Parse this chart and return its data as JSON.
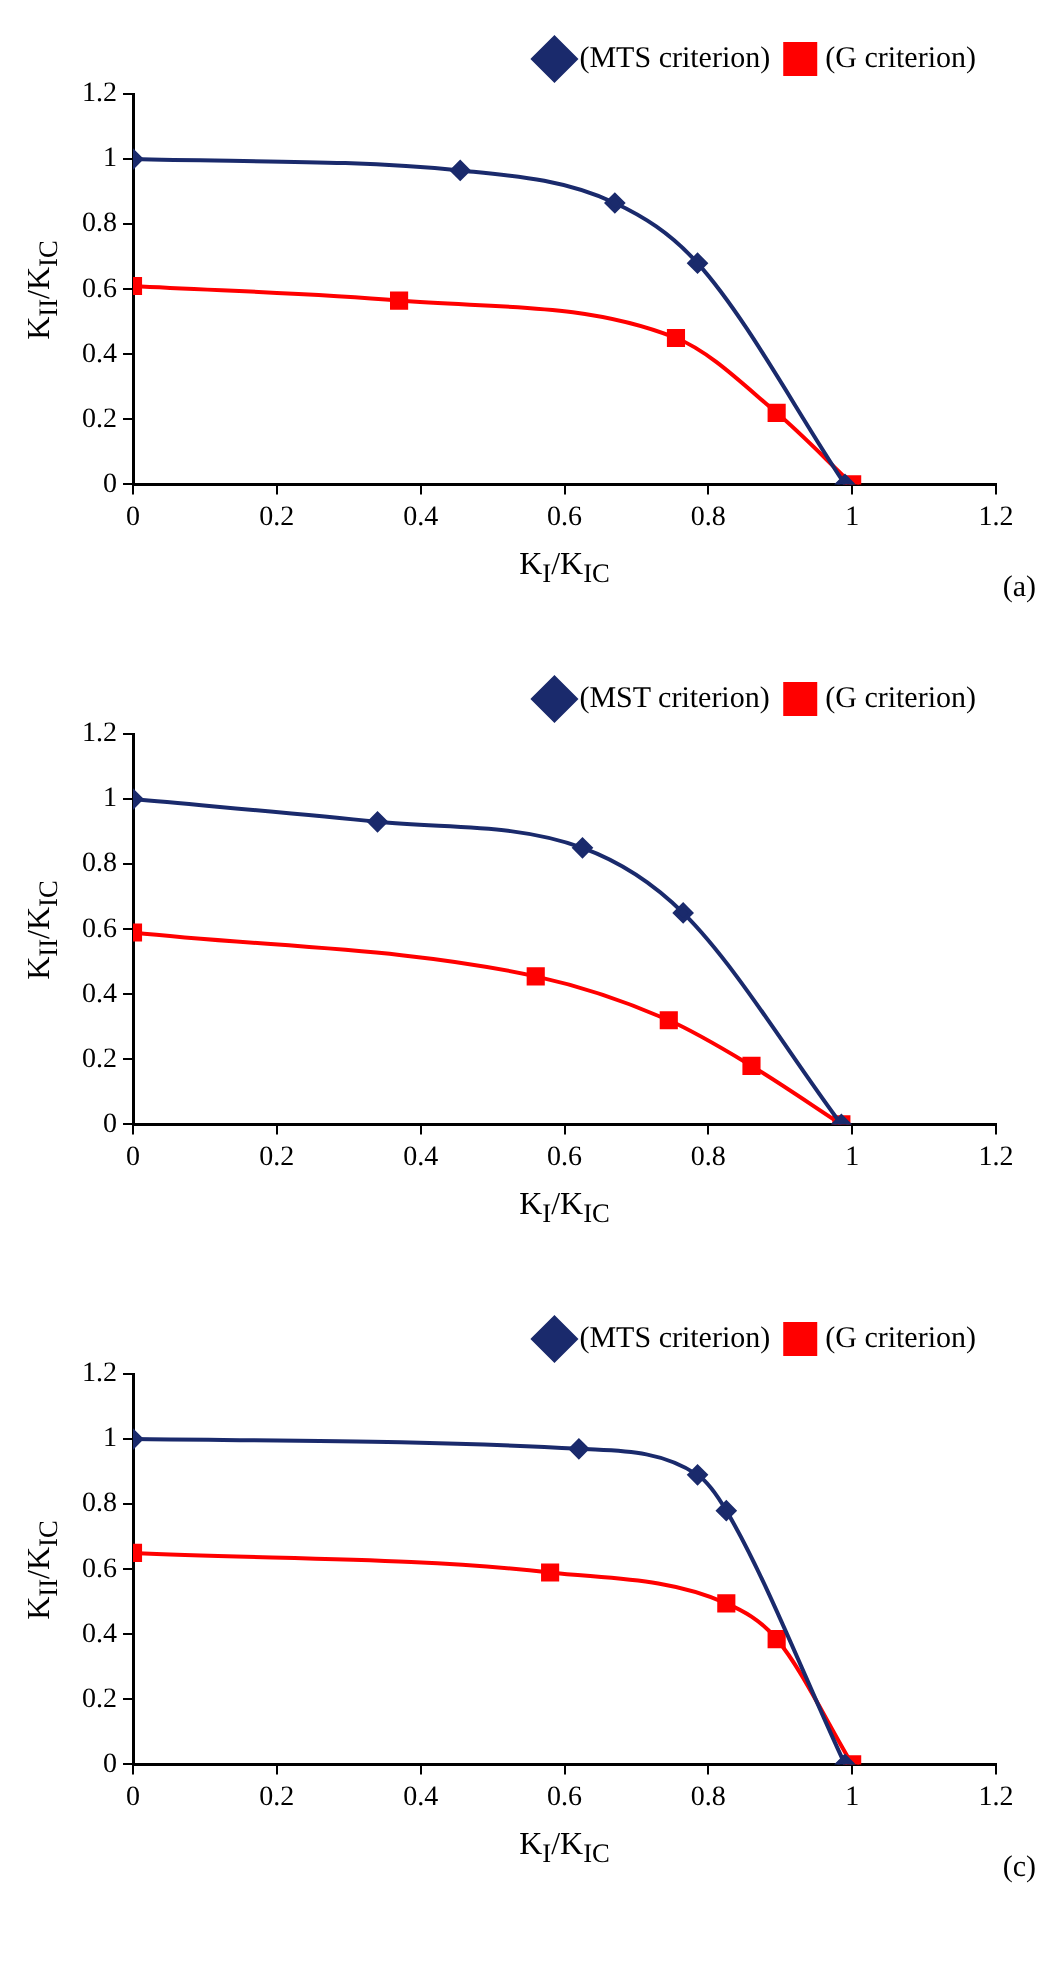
{
  "chart_data": [
    {
      "type": "line",
      "xlabel": "K$_{I}$/K$_{IC}$",
      "ylabel": "K$_{II}$/K$_{IC}$",
      "annotations": [
        "(a)"
      ],
      "xlim": [
        0,
        1.2
      ],
      "xticks": [
        0,
        0.2,
        0.4,
        0.6,
        0.8,
        1,
        1.2
      ],
      "ylim": [
        0,
        1.2
      ],
      "yticks": [
        0,
        0.2,
        0.4,
        0.6,
        0.8,
        1,
        1.2
      ],
      "grid": false,
      "legend": "top right",
      "series": [
        {
          "name": "(MTS criterion)",
          "color": "#1a2a6c",
          "marker": "diamond",
          "x": [
            0,
            0.455,
            0.67,
            0.785,
            0.99
          ],
          "values": [
            1,
            0.965,
            0.865,
            0.68,
            0
          ]
        },
        {
          "name": "(G criterion)",
          "color": "#ff0000",
          "marker": "square",
          "x": [
            0,
            0.37,
            0.755,
            0.895,
            1
          ],
          "values": [
            0.61,
            0.565,
            0.45,
            0.22,
            0
          ]
        }
      ]
    },
    {
      "type": "line",
      "xlabel": "K$_{I}$/K$_{IC}$",
      "ylabel": "K$_{II}$/K$_{IC}$",
      "xlim": [
        0,
        1.2
      ],
      "xticks": [
        0,
        0.2,
        0.4,
        0.6,
        0.8,
        1,
        1.2
      ],
      "ylim": [
        0,
        1.2
      ],
      "yticks": [
        0,
        0.2,
        0.4,
        0.6,
        0.8,
        1,
        1.2
      ],
      "grid": false,
      "legend": "top right",
      "series": [
        {
          "name": "(MST criterion)",
          "color": "#1a2a6c",
          "marker": "diamond",
          "x": [
            0,
            0.34,
            0.625,
            0.765,
            0.985
          ],
          "values": [
            1,
            0.93,
            0.85,
            0.65,
            0
          ]
        },
        {
          "name": "(G criterion)",
          "color": "#ff0000",
          "marker": "square",
          "x": [
            0,
            0.56,
            0.745,
            0.86,
            0.985
          ],
          "values": [
            0.59,
            0.455,
            0.32,
            0.18,
            0
          ]
        }
      ]
    },
    {
      "type": "line",
      "xlabel": "K$_{I}$/K$_{IC}$",
      "ylabel": "K$_{II}$/K$_{IC}$",
      "annotations": [
        "(c)"
      ],
      "xlim": [
        0,
        1.2
      ],
      "xticks": [
        0,
        0.2,
        0.4,
        0.6,
        0.8,
        1,
        1.2
      ],
      "ylim": [
        0,
        1.2
      ],
      "yticks": [
        0,
        0.2,
        0.4,
        0.6,
        0.8,
        1,
        1.2
      ],
      "grid": false,
      "legend": "top right",
      "series": [
        {
          "name": "(MTS criterion)",
          "color": "#1a2a6c",
          "marker": "diamond",
          "x": [
            0,
            0.62,
            0.785,
            0.825,
            0.99
          ],
          "values": [
            1,
            0.97,
            0.89,
            0.78,
            0
          ]
        },
        {
          "name": "(G criterion)",
          "color": "#ff0000",
          "marker": "square",
          "x": [
            0,
            0.58,
            0.825,
            0.895,
            1
          ],
          "values": [
            0.65,
            0.59,
            0.495,
            0.385,
            0
          ]
        }
      ]
    }
  ]
}
